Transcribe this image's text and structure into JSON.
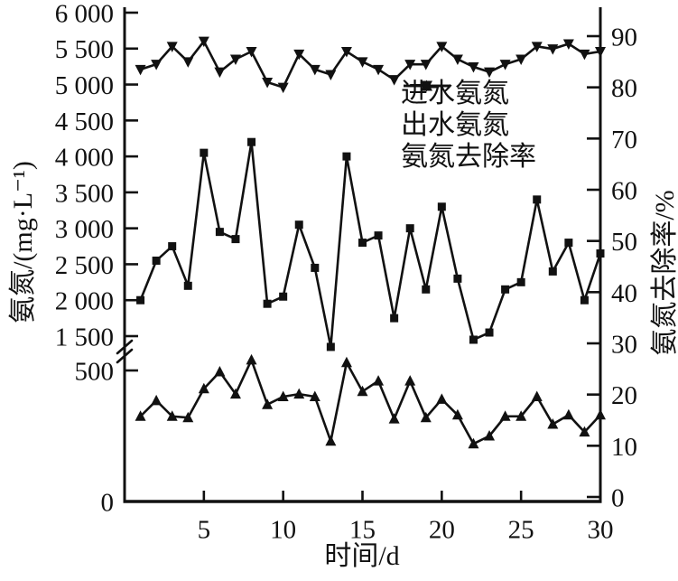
{
  "figure_title": "",
  "chart_data": {
    "type": "line",
    "title": "",
    "xlabel": "时间/d",
    "ylabel_left": "氨氮/(mg·L⁻¹)",
    "ylabel_right": "氨氮去除率/%",
    "x_range": [
      0,
      30
    ],
    "x_ticks": [
      5,
      10,
      15,
      20,
      25,
      30
    ],
    "x": [
      1,
      2,
      3,
      4,
      5,
      6,
      7,
      8,
      9,
      10,
      11,
      12,
      13,
      14,
      15,
      16,
      17,
      18,
      19,
      20,
      21,
      22,
      23,
      24,
      25,
      26,
      27,
      28,
      29,
      30
    ],
    "left_axis": {
      "upper_ticks": [
        1500,
        2000,
        2500,
        3000,
        3500,
        4000,
        4500,
        5000,
        5500,
        6000
      ],
      "lower_ticks": [
        0,
        500
      ],
      "broken_between": [
        500,
        1500
      ],
      "grid": false
    },
    "right_axis": {
      "ticks": [
        0,
        10,
        20,
        30,
        40,
        50,
        60,
        70,
        80,
        90
      ],
      "min": 0,
      "max": 90,
      "grid": false
    },
    "legend_position": "inside-top-right",
    "line_color": "#111111",
    "series": [
      {
        "key": "influent",
        "name": "进水氨氮",
        "marker": "square",
        "axis": "left-upper",
        "values": [
          2000,
          2550,
          2750,
          2200,
          4050,
          2950,
          2850,
          4200,
          1950,
          2050,
          3050,
          2450,
          1350,
          4000,
          2800,
          2900,
          1750,
          3000,
          2150,
          3300,
          2300,
          1450,
          1550,
          2150,
          2250,
          3400,
          2400,
          2800,
          2000,
          2650
        ]
      },
      {
        "key": "effluent",
        "name": "出水氨氮",
        "marker": "triangle-up",
        "axis": "left-lower",
        "values": [
          325,
          385,
          325,
          320,
          430,
          495,
          410,
          540,
          370,
          400,
          410,
          400,
          230,
          530,
          420,
          460,
          315,
          460,
          320,
          390,
          330,
          220,
          250,
          325,
          325,
          400,
          295,
          330,
          265,
          330
        ]
      },
      {
        "key": "removal_rate",
        "name": "氨氮去除率",
        "marker": "triangle-down",
        "axis": "right",
        "values": [
          83.5,
          84.5,
          88,
          85,
          89,
          83,
          85.5,
          87,
          81,
          80,
          86.5,
          83.5,
          82.5,
          87,
          85,
          83.5,
          81.5,
          84.5,
          84.5,
          88,
          85.5,
          84,
          83,
          84.5,
          85.5,
          88,
          87.5,
          88.5,
          86.5,
          87
        ]
      }
    ]
  }
}
